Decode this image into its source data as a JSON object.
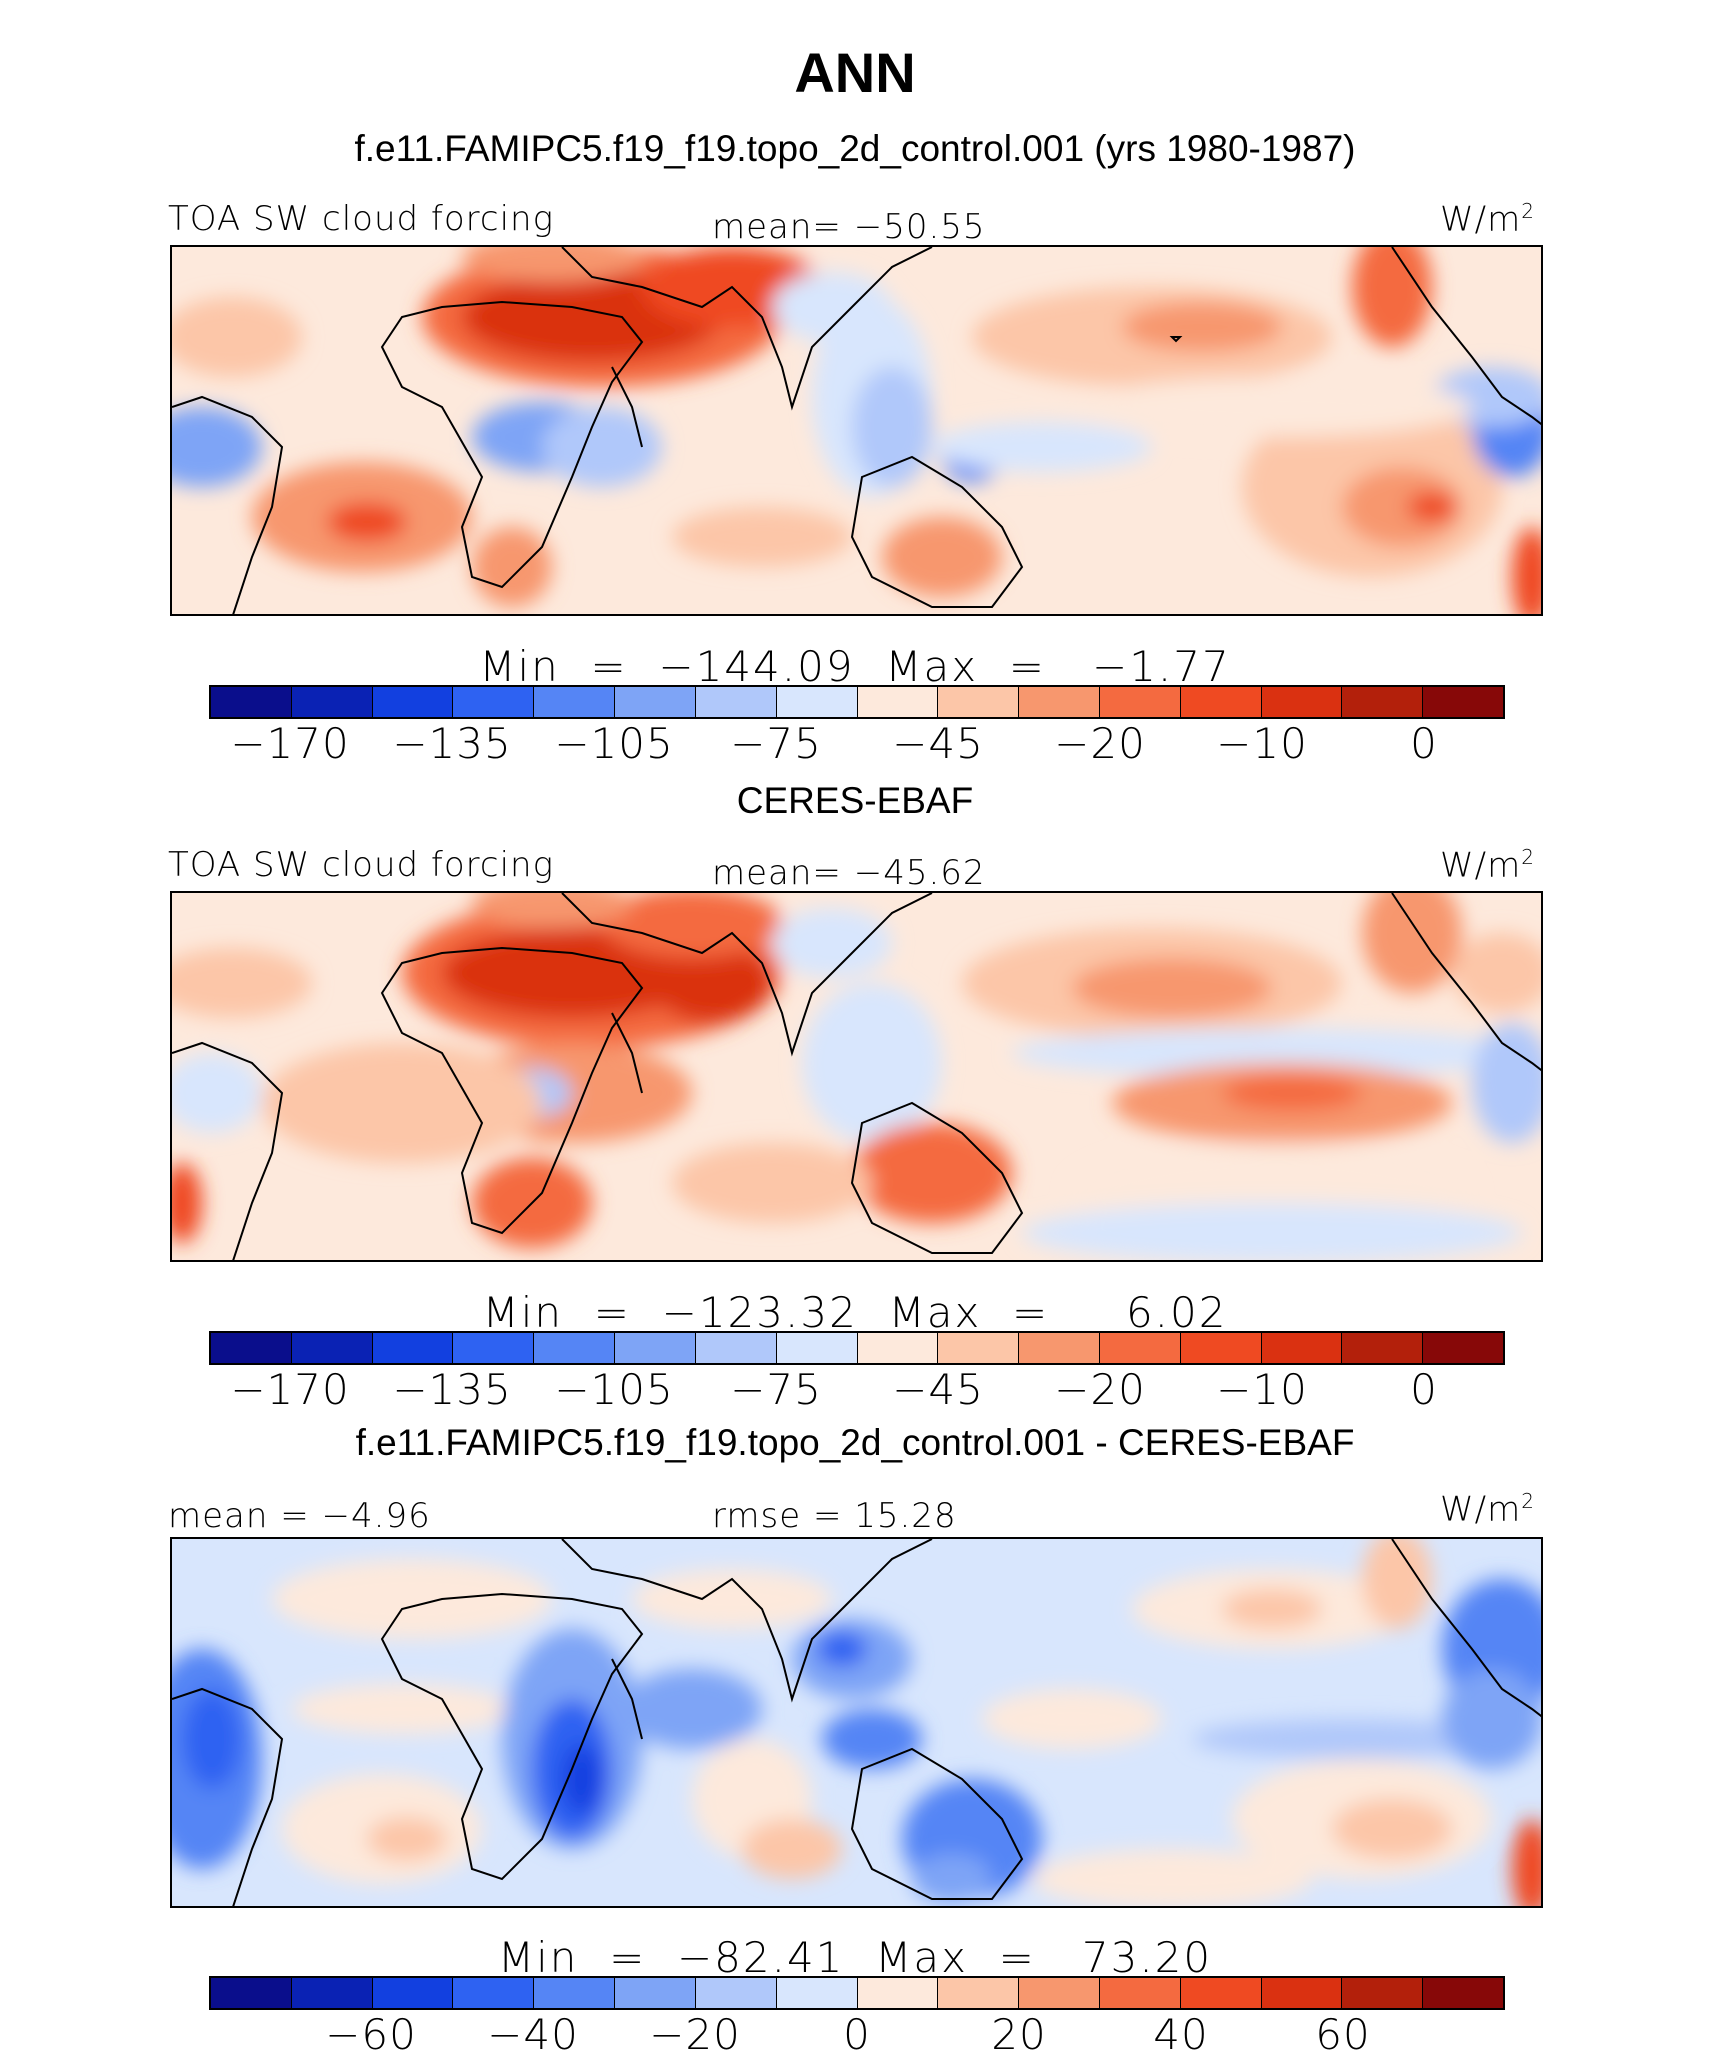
{
  "main_title": "ANN",
  "palette": [
    "#0a0e8c",
    "#0a22b4",
    "#1240e0",
    "#2e62f2",
    "#5585f5",
    "#7ea4f6",
    "#b0c8fa",
    "#d8e6fd",
    "#fde9dc",
    "#fcc6a8",
    "#f7976e",
    "#f46a40",
    "#ef4a22",
    "#da3111",
    "#b3200b",
    "#870808"
  ],
  "panels": [
    {
      "title": "f.e11.FAMIPC5.f19_f19.topo_2d_control.001 (yrs 1980-1987)",
      "left_label": "TOA SW cloud forcing",
      "center_label": "mean=  −50.55",
      "units": "W/m",
      "units_sup": "2",
      "minmax": "Min  =  −144.09  Max  =   −1.77",
      "ticks": [
        "−170",
        "−135",
        "−105",
        "−75",
        "−45",
        "−20",
        "−10",
        "0"
      ]
    },
    {
      "title": "CERES-EBAF",
      "left_label": "TOA SW cloud forcing",
      "center_label": "mean=  −45.62",
      "units": "W/m",
      "units_sup": "2",
      "minmax": "Min  =  −123.32  Max  =     6.02",
      "ticks": [
        "−170",
        "−135",
        "−105",
        "−75",
        "−45",
        "−20",
        "−10",
        "0"
      ]
    },
    {
      "title": "f.e11.FAMIPC5.f19_f19.topo_2d_control.001 - CERES-EBAF",
      "left_label": "mean =   −4.96",
      "center_label": "rmse =   15.28",
      "units": "W/m",
      "units_sup": "2",
      "minmax": "Min  =  −82.41  Max  =   73.20",
      "ticks": [
        "−60",
        "−40",
        "−20",
        "0",
        "20",
        "40",
        "60"
      ]
    }
  ],
  "chart_data": [
    {
      "type": "heatmap",
      "title": "f.e11.FAMIPC5.f19_f19.topo_2d_control.001 (yrs 1980-1987)",
      "variable": "TOA SW cloud forcing",
      "units": "W/m2",
      "mean": -50.55,
      "min": -144.09,
      "max": -1.77,
      "colorbar_labels": [
        -170,
        -135,
        -105,
        -75,
        -45,
        -20,
        -10,
        0
      ],
      "colorbar_bins": 16
    },
    {
      "type": "heatmap",
      "title": "CERES-EBAF",
      "variable": "TOA SW cloud forcing",
      "units": "W/m2",
      "mean": -45.62,
      "min": -123.32,
      "max": 6.02,
      "colorbar_labels": [
        -170,
        -135,
        -105,
        -75,
        -45,
        -20,
        -10,
        0
      ],
      "colorbar_bins": 16
    },
    {
      "type": "heatmap",
      "title": "f.e11.FAMIPC5.f19_f19.topo_2d_control.001 - CERES-EBAF",
      "units": "W/m2",
      "mean": -4.96,
      "rmse": 15.28,
      "min": -82.41,
      "max": 73.2,
      "colorbar_labels": [
        -60,
        -40,
        -20,
        0,
        20,
        40,
        60
      ],
      "colorbar_bins": 16
    }
  ]
}
